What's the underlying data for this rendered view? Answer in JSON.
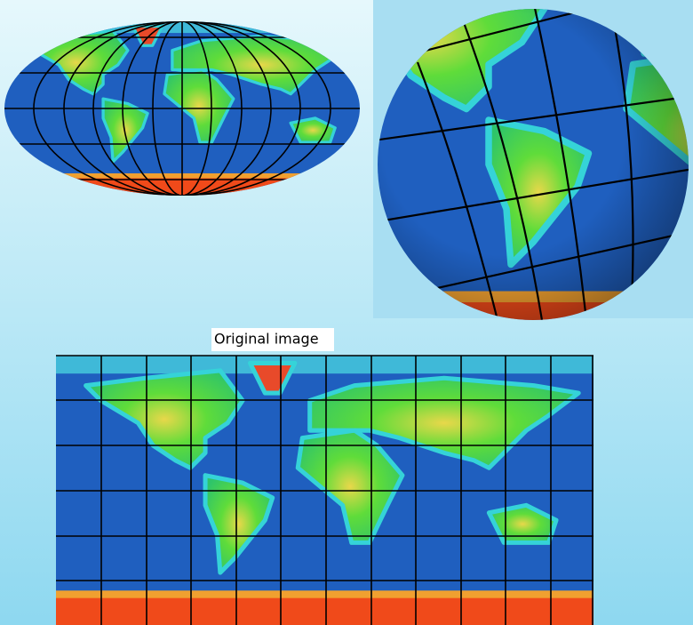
{
  "caption": "Original image"
}
